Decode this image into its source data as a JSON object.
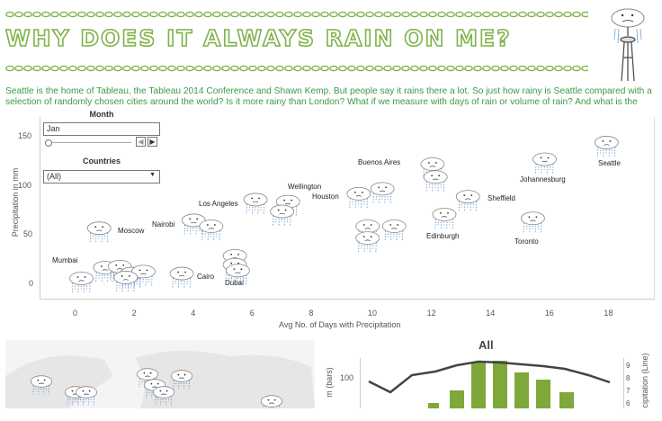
{
  "header": {
    "title": "WHY DOES IT ALWAYS RAIN ON ME?",
    "intro": "Seattle is the home of Tableau, the Tableau 2014 Conference and Shawn Kemp. But people say it rains there a lot. So just how rainy is Seattle compared with a selection of randomly chosen cities around the world? Is it more rainy than London? What if we measure with days of rain or volume of rain? And what is the"
  },
  "filters": {
    "month_label": "Month",
    "month_value": "Jan",
    "countries_label": "Countries",
    "countries_value": "(All)"
  },
  "scatter": {
    "xlabel": "Avg No. of Days with Precipitation",
    "ylabel": "Precipitation in mm",
    "xticks": [
      "0",
      "2",
      "4",
      "6",
      "8",
      "10",
      "12",
      "14",
      "16",
      "18"
    ],
    "yticks": [
      "0",
      "50",
      "100",
      "150"
    ],
    "cities": [
      {
        "name": "Seattle"
      },
      {
        "name": "Johannesburg"
      },
      {
        "name": "Buenos Aires"
      },
      {
        "name": "Wellington"
      },
      {
        "name": "Houston"
      },
      {
        "name": "Los Angeles"
      },
      {
        "name": "Sheffield"
      },
      {
        "name": "Toronto"
      },
      {
        "name": "Edinburgh"
      },
      {
        "name": "Nairobi"
      },
      {
        "name": "Moscow"
      },
      {
        "name": "Mumbai"
      },
      {
        "name": "Cairo"
      },
      {
        "name": "Dubai"
      }
    ]
  },
  "combo": {
    "title": "All",
    "left_tick": "100",
    "left_axis_fragment": "m (bars)",
    "right_axis_fragment": "cipitation (Line)",
    "right_ticks": [
      "9",
      "8",
      "7",
      "6"
    ]
  },
  "chart_data": {
    "type": "scatter",
    "xlabel": "Avg No. of Days with Precipitation",
    "ylabel": "Precipitation in mm",
    "xlim": [
      -1.5,
      19.5
    ],
    "ylim": [
      -8,
      158
    ],
    "points": [
      {
        "label": "Seattle",
        "x": 18.0,
        "y": 143
      },
      {
        "label": "Johannesburg",
        "x": 15.9,
        "y": 126
      },
      {
        "label": "Buenos Aires",
        "x": 12.1,
        "y": 121
      },
      {
        "label": "",
        "x": 12.2,
        "y": 108
      },
      {
        "label": "Wellington",
        "x": 10.4,
        "y": 96
      },
      {
        "label": "Houston",
        "x": 9.6,
        "y": 91
      },
      {
        "label": "Los Angeles",
        "x": 6.1,
        "y": 85
      },
      {
        "label": "",
        "x": 7.2,
        "y": 83
      },
      {
        "label": "",
        "x": 7.0,
        "y": 73
      },
      {
        "label": "Sheffield",
        "x": 13.3,
        "y": 88
      },
      {
        "label": "Toronto",
        "x": 15.5,
        "y": 66
      },
      {
        "label": "Edinburgh",
        "x": 12.5,
        "y": 70
      },
      {
        "label": "",
        "x": 9.9,
        "y": 58
      },
      {
        "label": "",
        "x": 10.8,
        "y": 58
      },
      {
        "label": "",
        "x": 9.9,
        "y": 46
      },
      {
        "label": "Nairobi",
        "x": 4.0,
        "y": 64
      },
      {
        "label": "",
        "x": 4.6,
        "y": 58
      },
      {
        "label": "Moscow",
        "x": 0.8,
        "y": 56
      },
      {
        "label": "",
        "x": 5.4,
        "y": 28
      },
      {
        "label": "",
        "x": 5.4,
        "y": 19
      },
      {
        "label": "Mumbai",
        "x": 0.2,
        "y": 5
      },
      {
        "label": "",
        "x": 1.0,
        "y": 16
      },
      {
        "label": "",
        "x": 1.5,
        "y": 17
      },
      {
        "label": "",
        "x": 1.9,
        "y": 10
      },
      {
        "label": "",
        "x": 2.3,
        "y": 12
      },
      {
        "label": "",
        "x": 1.7,
        "y": 6
      },
      {
        "label": "Cairo",
        "x": 3.6,
        "y": 10
      },
      {
        "label": "Dubai",
        "x": 5.5,
        "y": 13
      }
    ]
  },
  "colors": {
    "accent": "#7fb24a",
    "intro": "#3b9a47",
    "bars": "#7ea83a",
    "line": "#444444"
  },
  "icons": [
    "rain-cloud-icon",
    "space-needle-icon",
    "dropdown-arrow-icon",
    "prev-icon",
    "next-icon"
  ]
}
